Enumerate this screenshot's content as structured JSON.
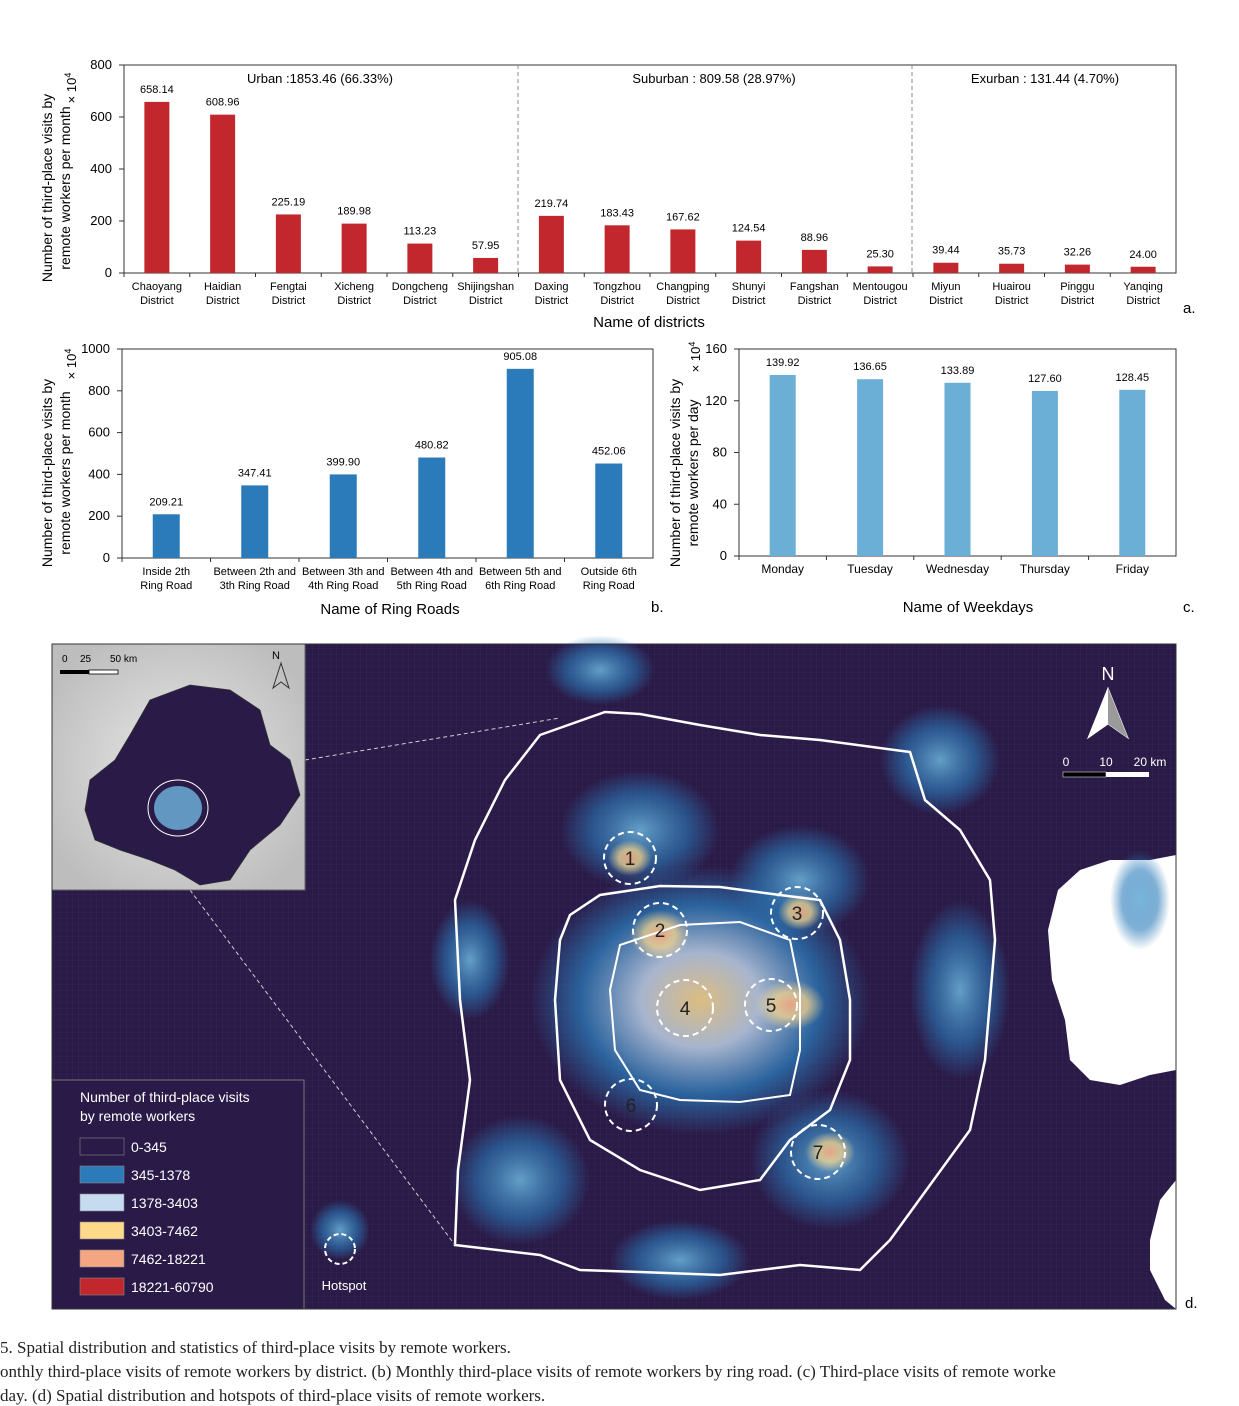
{
  "chart_data": [
    {
      "type": "bar",
      "panel_label": "a.",
      "xlabel": "Name of districts",
      "ylabel": [
        "Number of  third-place visits by",
        "remote workers per month"
      ],
      "multiplier": "× 10",
      "multiplier_exp": "4",
      "ylim": [
        0,
        800
      ],
      "yticks": [
        "0",
        "200",
        "400",
        "600",
        "800"
      ],
      "bar_color": "#c1272d",
      "categories": [
        [
          "Chaoyang",
          "District"
        ],
        [
          "Haidian",
          "District"
        ],
        [
          "Fengtai",
          "District"
        ],
        [
          "Xicheng",
          "District"
        ],
        [
          "Dongcheng",
          "District"
        ],
        [
          "Shijingshan",
          "District"
        ],
        [
          "Daxing",
          "District"
        ],
        [
          "Tongzhou",
          "District"
        ],
        [
          "Changping",
          "District"
        ],
        [
          "Shunyi",
          "District"
        ],
        [
          "Fangshan",
          "District"
        ],
        [
          "Mentougou",
          "District"
        ],
        [
          "Miyun",
          "District"
        ],
        [
          "Huairou",
          "District"
        ],
        [
          "Pinggu",
          "District"
        ],
        [
          "Yanqing",
          "District"
        ]
      ],
      "values": [
        658.14,
        608.96,
        225.19,
        189.98,
        113.23,
        57.95,
        219.74,
        183.43,
        167.62,
        124.54,
        88.96,
        25.3,
        39.44,
        35.73,
        32.26,
        24.0
      ],
      "value_labels": [
        "658.14",
        "608.96",
        "225.19",
        "189.98",
        "113.23",
        "57.95",
        "219.74",
        "183.43",
        "167.62",
        "124.54",
        "88.96",
        "25.30",
        "39.44",
        "35.73",
        "32.26",
        "24.00"
      ],
      "groups": [
        {
          "label": "Urban :1853.46 (66.33%)"
        },
        {
          "label": "Suburban : 809.58 (28.97%)"
        },
        {
          "label": "Exurban : 131.44 (4.70%)"
        }
      ]
    },
    {
      "type": "bar",
      "panel_label": "b.",
      "xlabel": "Name of Ring Roads",
      "ylabel": [
        "Number of  third-place visits by",
        "remote workers per month"
      ],
      "multiplier": "× 10",
      "multiplier_exp": "4",
      "ylim": [
        0,
        1000
      ],
      "yticks": [
        "0",
        "200",
        "400",
        "600",
        "800",
        "1000"
      ],
      "bar_color": "#2b7bba",
      "categories": [
        [
          "Inside 2th",
          "Ring Road"
        ],
        [
          "Between 2th and",
          "3th Ring Road"
        ],
        [
          "Between 3th and",
          "4th Ring Road"
        ],
        [
          "Between 4th and",
          "5th Ring Road"
        ],
        [
          "Between 5th and",
          "6th Ring Road"
        ],
        [
          "Outside 6th",
          "Ring Road"
        ]
      ],
      "values": [
        209.21,
        347.41,
        399.9,
        480.82,
        905.08,
        452.06
      ],
      "value_labels": [
        "209.21",
        "347.41",
        "399.90",
        "480.82",
        "905.08",
        "452.06"
      ]
    },
    {
      "type": "bar",
      "panel_label": "c.",
      "xlabel": "Name of Weekdays",
      "ylabel": [
        "Number of  third-place visits by",
        "remote workers per day"
      ],
      "multiplier": "× 10",
      "multiplier_exp": "4",
      "ylim": [
        0,
        160
      ],
      "yticks": [
        "0",
        "40",
        "80",
        "120",
        "160"
      ],
      "bar_color": "#6baed6",
      "categories": [
        [
          "Monday"
        ],
        [
          "Tuesday"
        ],
        [
          "Wednesday"
        ],
        [
          "Thursday"
        ],
        [
          "Friday"
        ]
      ],
      "values": [
        139.92,
        136.65,
        133.89,
        127.6,
        128.45
      ],
      "value_labels": [
        "139.92",
        "136.65",
        "133.89",
        "127.60",
        "128.45"
      ]
    }
  ],
  "map": {
    "panel_label": "d.",
    "north": "N",
    "scale": {
      "labels": [
        "0",
        "10",
        "20 km"
      ]
    },
    "inset": {
      "north": "N",
      "scale_labels": [
        "0",
        "25",
        "50 km"
      ]
    },
    "legend": {
      "title": [
        "Number of third-place visits",
        "by remote workers"
      ],
      "items": [
        {
          "label": "0-345",
          "color": "#2a1a47"
        },
        {
          "label": "345-1378",
          "color": "#2b7bba"
        },
        {
          "label": "1378-3403",
          "color": "#c6dbef"
        },
        {
          "label": "3403-7462",
          "color": "#fdd98a"
        },
        {
          "label": "7462-18221",
          "color": "#f4a582"
        },
        {
          "label": "18221-60790",
          "color": "#c1272d"
        }
      ],
      "hotspot_label": "Hotspot"
    },
    "hotspots": [
      "1",
      "2",
      "3",
      "4",
      "5",
      "6",
      "7"
    ]
  },
  "caption": [
    "5.  Spatial distribution and statistics of third-place visits by remote workers.",
    "onthly third-place visits of remote workers by district. (b) Monthly third-place visits of remote workers by ring road. (c) Third-place visits of remote worke",
    "day.  (d) Spatial distribution and hotspots of third-place visits of remote workers."
  ]
}
